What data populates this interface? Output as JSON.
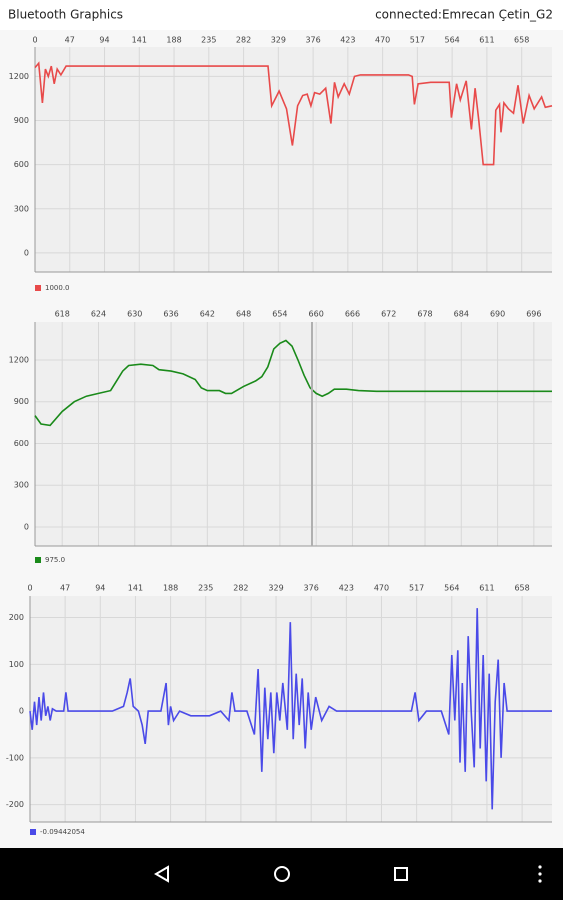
{
  "app_bar": {
    "title": "Bluetooth Graphics",
    "status": "connected:Emrecan Çetin_G2"
  },
  "chart_data": [
    {
      "type": "line",
      "xlim": [
        0,
        699
      ],
      "xticks": [
        0,
        47,
        94,
        141,
        188,
        235,
        282,
        329,
        376,
        423,
        470,
        517,
        564,
        611,
        658
      ],
      "ylim": [
        -130,
        1400
      ],
      "yticks": [
        0,
        300,
        600,
        900,
        1200
      ],
      "grid": true,
      "x": [
        0,
        5,
        10,
        14,
        18,
        22,
        26,
        30,
        35,
        42,
        50,
        100,
        200,
        315,
        320,
        330,
        340,
        348,
        355,
        362,
        368,
        373,
        378,
        385,
        393,
        400,
        405,
        410,
        418,
        425,
        432,
        440,
        470,
        505,
        510,
        513,
        518,
        535,
        560,
        563,
        570,
        575,
        583,
        590,
        595,
        600,
        606,
        620,
        623,
        628,
        630,
        634,
        640,
        647,
        653,
        660,
        668,
        675,
        685,
        690,
        699
      ],
      "series": [
        {
          "name": "1000.0",
          "color": "#e84a4a",
          "values": [
            1260,
            1290,
            1020,
            1250,
            1200,
            1270,
            1150,
            1250,
            1210,
            1270,
            1270,
            1270,
            1270,
            1270,
            1000,
            1100,
            980,
            730,
            1000,
            1070,
            1080,
            1000,
            1090,
            1080,
            1120,
            880,
            1160,
            1060,
            1150,
            1080,
            1200,
            1210,
            1210,
            1210,
            1200,
            1010,
            1150,
            1160,
            1160,
            920,
            1150,
            1040,
            1170,
            840,
            1120,
            900,
            600,
            600,
            970,
            1010,
            820,
            1020,
            980,
            950,
            1140,
            880,
            1070,
            980,
            1060,
            990,
            1000
          ]
        }
      ]
    },
    {
      "type": "line",
      "xlim": [
        613.5,
        699
      ],
      "xticks": [
        618,
        624,
        630,
        636,
        642,
        648,
        654,
        660,
        666,
        672,
        678,
        684,
        690,
        696
      ],
      "ylim": [
        -137,
        1473
      ],
      "yticks": [
        0,
        300,
        600,
        900,
        1200
      ],
      "grid": true,
      "x": [
        613.5,
        614.5,
        616,
        618,
        620,
        622,
        624,
        626,
        627,
        628,
        629,
        631,
        633,
        634,
        636,
        638,
        640,
        641,
        642,
        644,
        645,
        646,
        648,
        650,
        651,
        652,
        653,
        654,
        655,
        656,
        657,
        658,
        659,
        660,
        661,
        662,
        663,
        665,
        667,
        670,
        699
      ],
      "series": [
        {
          "name": "975.0",
          "color": "#1a8a1a",
          "values": [
            800,
            740,
            730,
            830,
            900,
            940,
            960,
            980,
            1050,
            1120,
            1160,
            1170,
            1160,
            1130,
            1120,
            1100,
            1060,
            1000,
            980,
            980,
            960,
            960,
            1010,
            1050,
            1080,
            1150,
            1280,
            1320,
            1340,
            1300,
            1200,
            1090,
            1000,
            960,
            940,
            960,
            990,
            990,
            980,
            975,
            975
          ]
        }
      ]
    },
    {
      "type": "line",
      "xlim": [
        0,
        698
      ],
      "xticks": [
        0,
        47,
        94,
        141,
        188,
        235,
        282,
        329,
        376,
        423,
        470,
        517,
        564,
        611,
        658
      ],
      "ylim": [
        -237,
        246
      ],
      "yticks": [
        200,
        100,
        0,
        -100,
        -200
      ],
      "grid": true,
      "x": [
        0,
        3,
        6,
        9,
        12,
        15,
        18,
        21,
        24,
        27,
        30,
        35,
        45,
        48,
        51,
        60,
        110,
        125,
        130,
        134,
        138,
        145,
        150,
        154,
        158,
        175,
        182,
        185,
        188,
        192,
        200,
        215,
        240,
        255,
        266,
        270,
        274,
        290,
        300,
        305,
        310,
        314,
        318,
        322,
        326,
        330,
        334,
        338,
        344,
        348,
        352,
        356,
        360,
        364,
        368,
        372,
        376,
        382,
        390,
        400,
        410,
        440,
        510,
        515,
        520,
        530,
        550,
        560,
        564,
        568,
        572,
        575,
        578,
        582,
        586,
        590,
        594,
        598,
        602,
        606,
        610,
        614,
        618,
        622,
        626,
        630,
        634,
        638,
        642,
        650,
        660,
        698
      ],
      "series": [
        {
          "name": "-0.09442054",
          "color": "#4a4ae8",
          "values": [
            0,
            -40,
            20,
            -30,
            30,
            -20,
            40,
            -10,
            10,
            -20,
            5,
            0,
            0,
            40,
            0,
            0,
            0,
            10,
            40,
            70,
            10,
            0,
            -30,
            -70,
            0,
            0,
            60,
            -30,
            10,
            -20,
            0,
            -10,
            -10,
            0,
            -20,
            40,
            0,
            0,
            -50,
            90,
            -130,
            50,
            -60,
            40,
            -90,
            40,
            -20,
            60,
            -40,
            190,
            -60,
            80,
            -30,
            70,
            -80,
            40,
            -40,
            30,
            -20,
            10,
            0,
            0,
            0,
            40,
            -20,
            0,
            0,
            -50,
            120,
            -20,
            130,
            -110,
            60,
            -130,
            160,
            0,
            -120,
            220,
            -80,
            120,
            -150,
            80,
            -210,
            20,
            110,
            -100,
            60,
            0,
            0,
            0,
            0,
            0
          ]
        }
      ]
    }
  ]
}
